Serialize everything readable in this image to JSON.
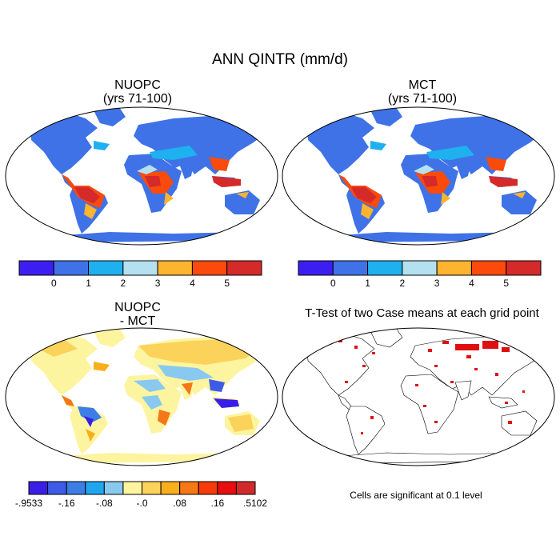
{
  "title": "ANN QINTR (mm/d)",
  "panels": [
    {
      "id": "nuopc",
      "title_line1": "NUOPC",
      "title_line2": "(yrs 71-100)"
    },
    {
      "id": "mct",
      "title_line1": "MCT",
      "title_line2": "(yrs 71-100)"
    },
    {
      "id": "diff",
      "title_line1": "NUOPC",
      "title_line2": "- MCT"
    },
    {
      "id": "ttest",
      "title_line1": "T-Test of two Case means at each grid point",
      "title_line2": ""
    }
  ],
  "colorbar_main": {
    "colors": [
      "#3d1ef0",
      "#3f72e6",
      "#1fb0ef",
      "#b5e0f0",
      "#fdb42e",
      "#fa4a0c",
      "#d52a2a"
    ],
    "labels": [
      "0",
      "1",
      "2",
      "3",
      "4",
      "5"
    ]
  },
  "colorbar_diff": {
    "colors": [
      "#3a1ee6",
      "#3c5ce8",
      "#3d7ee6",
      "#1fa6ee",
      "#89c9f0",
      "#fdf4a0",
      "#fbd35a",
      "#f9ae1c",
      "#f57716",
      "#f53b0a",
      "#e60e0e",
      "#d22a2a"
    ],
    "labels": [
      "-.9533",
      "-.16",
      "-.08",
      "-.0",
      ".08",
      ".16",
      ".5102"
    ]
  },
  "note": "Cells are significant at 0.1 level",
  "colors": {
    "ocean": "#ffffff",
    "outline": "#000000",
    "significant": "#e01010"
  }
}
